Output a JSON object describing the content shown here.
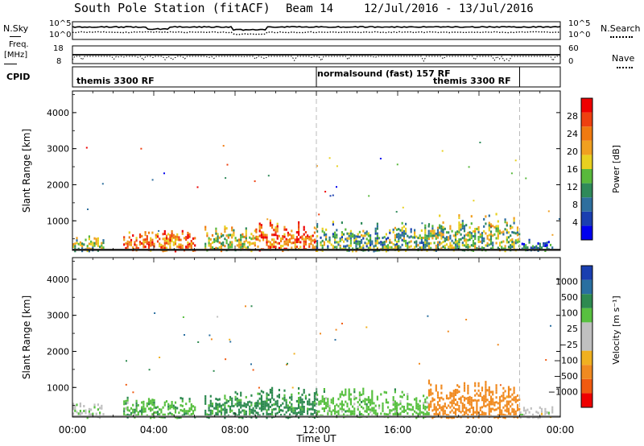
{
  "header": {
    "station": "South Pole Station (fitACF)",
    "beam": "Beam 14",
    "date_range": "12/Jul/2016 - 13/Jul/2016"
  },
  "noise_panel": {
    "left_label": "N.Sky",
    "right_label": "N.Search",
    "left_ticks": [
      "10^5",
      "10^0"
    ],
    "right_ticks": [
      "10^5",
      "10^0"
    ]
  },
  "freq_panel": {
    "left_label_line1": "Freq.",
    "left_label_line2": "[MHz]",
    "left_ticks": [
      "18",
      "8"
    ],
    "right_label": "Nave",
    "right_ticks": [
      "60",
      "0"
    ]
  },
  "cpid_panel": {
    "label": "CPID",
    "segments": [
      "themis 3300 RF",
      "normalsound (fast) 157 RF",
      "themis 3300 RF"
    ]
  },
  "colors": {
    "power_scale": [
      "#0000ee",
      "#1a3fb0",
      "#2e6f9e",
      "#2f8a5a",
      "#59b93c",
      "#e8d020",
      "#f0a020",
      "#f07a10",
      "#ee4010",
      "#ee0000"
    ],
    "velocity_scale": [
      "#ee0000",
      "#f05a10",
      "#f08a20",
      "#f0b020",
      "#c0c0c0",
      "#c0c0c0",
      "#58c040",
      "#2e8a50",
      "#2a6fa0",
      "#1a3fb0"
    ]
  },
  "chart_data": [
    {
      "type": "heatmap",
      "name": "power",
      "ylabel": "Slant Range [km]",
      "colorbar_label": "Power [dB]",
      "colorbar_ticks": [
        "28",
        "24",
        "20",
        "16",
        "12",
        "8",
        "4"
      ],
      "y_ticks": [
        "4000",
        "3000",
        "2000",
        "1000"
      ],
      "ylim": [
        180,
        4600
      ],
      "clim": [
        0,
        30
      ],
      "x_ticks": [
        "00:00",
        "04:00",
        "08:00",
        "12:00",
        "16:00",
        "20:00",
        "00:00"
      ],
      "xlabel": "Time UT",
      "xlim_hours": [
        0,
        24
      ],
      "marker_hours": [
        12,
        22
      ],
      "echo_regions": [
        {
          "t0": 0.0,
          "t1": 1.5,
          "r0": 180,
          "r1": 600,
          "value": 14
        },
        {
          "t0": 2.5,
          "t1": 6.0,
          "r0": 180,
          "r1": 750,
          "value": 22
        },
        {
          "t0": 6.5,
          "t1": 9.0,
          "r0": 180,
          "r1": 900,
          "value": 16
        },
        {
          "t0": 9.0,
          "t1": 12.0,
          "r0": 180,
          "r1": 1050,
          "value": 24
        },
        {
          "t0": 12.0,
          "t1": 17.5,
          "r0": 180,
          "r1": 1000,
          "value": 12
        },
        {
          "t0": 17.5,
          "t1": 22.0,
          "r0": 180,
          "r1": 1250,
          "value": 14
        },
        {
          "t0": 22.0,
          "t1": 23.6,
          "r0": 180,
          "r1": 500,
          "value": 8
        }
      ]
    },
    {
      "type": "heatmap",
      "name": "velocity",
      "ylabel": "Slant Range [km]",
      "colorbar_label": "Velocity [m s⁻¹]",
      "colorbar_ticks": [
        "1000",
        "500",
        "100",
        "25",
        "−25",
        "−100",
        "−500",
        "−1000"
      ],
      "y_ticks": [
        "4000",
        "3000",
        "2000",
        "1000"
      ],
      "ylim": [
        180,
        4600
      ],
      "x_ticks": [
        "00:00",
        "04:00",
        "08:00",
        "12:00",
        "16:00",
        "20:00",
        "00:00"
      ],
      "xlabel": "Time UT",
      "xlim_hours": [
        0,
        24
      ],
      "marker_hours": [
        12,
        22
      ],
      "echo_regions": [
        {
          "t0": 0.0,
          "t1": 1.5,
          "r0": 180,
          "r1": 600,
          "value": 10
        },
        {
          "t0": 2.5,
          "t1": 6.0,
          "r0": 180,
          "r1": 750,
          "value": 80
        },
        {
          "t0": 6.5,
          "t1": 9.0,
          "r0": 180,
          "r1": 900,
          "value": 120
        },
        {
          "t0": 9.0,
          "t1": 12.0,
          "r0": 180,
          "r1": 1050,
          "value": 150
        },
        {
          "t0": 12.0,
          "t1": 17.5,
          "r0": 180,
          "r1": 1000,
          "value": 60
        },
        {
          "t0": 17.5,
          "t1": 22.0,
          "r0": 180,
          "r1": 1250,
          "value": -300
        },
        {
          "t0": 22.0,
          "t1": 23.6,
          "r0": 180,
          "r1": 500,
          "value": 0
        }
      ]
    }
  ]
}
